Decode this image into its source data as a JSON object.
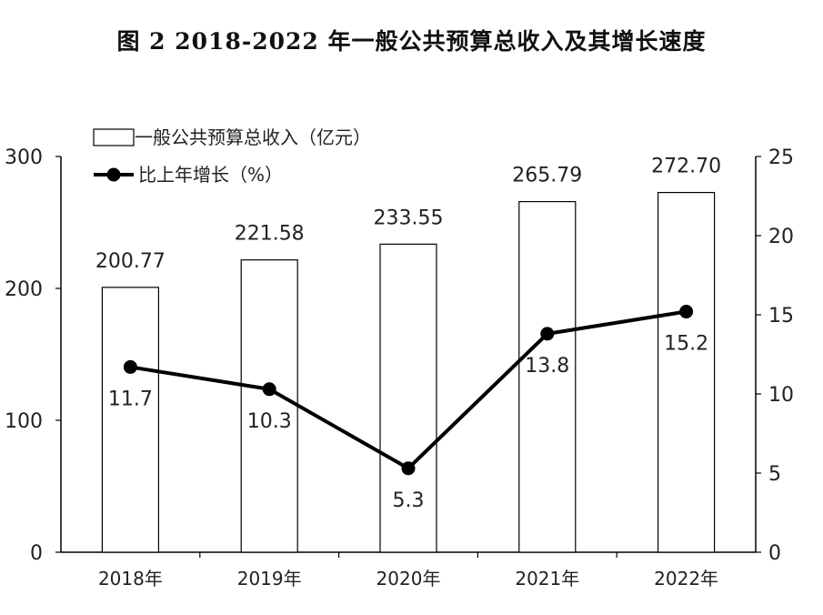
{
  "title": "图 2  2018-2022 年一般公共预算总收入及其增长速度",
  "chart_data": {
    "type": "bar",
    "title": "图 2  2018-2022 年一般公共预算总收入及其增长速度",
    "categories": [
      "2018年",
      "2019年",
      "2020年",
      "2021年",
      "2022年"
    ],
    "series": [
      {
        "name": "一般公共预算总收入（亿元）",
        "type": "bar",
        "axis": "left",
        "values": [
          200.77,
          221.58,
          233.55,
          265.79,
          272.7
        ],
        "labels": [
          "200.77",
          "221.58",
          "233.55",
          "265.79",
          "272.70"
        ],
        "color": "#ffffff",
        "stroke": "#000000"
      },
      {
        "name": "比上年增长（%）",
        "type": "line",
        "axis": "right",
        "values": [
          11.7,
          10.3,
          5.3,
          13.8,
          15.2
        ],
        "labels": [
          "11.7",
          "10.3",
          "5.3",
          "13.8",
          "15.2"
        ],
        "color": "#000000"
      }
    ],
    "y_left": {
      "min": 0,
      "max": 300,
      "ticks": [
        "0",
        "100",
        "200",
        "300"
      ],
      "tick_values": [
        0,
        100,
        200,
        300
      ]
    },
    "y_right": {
      "min": 0,
      "max": 25,
      "ticks": [
        "0",
        "5",
        "10",
        "15",
        "20",
        "25"
      ],
      "tick_values": [
        0,
        5,
        10,
        15,
        20,
        25
      ]
    },
    "grid": false,
    "legend_position": "top-left"
  }
}
